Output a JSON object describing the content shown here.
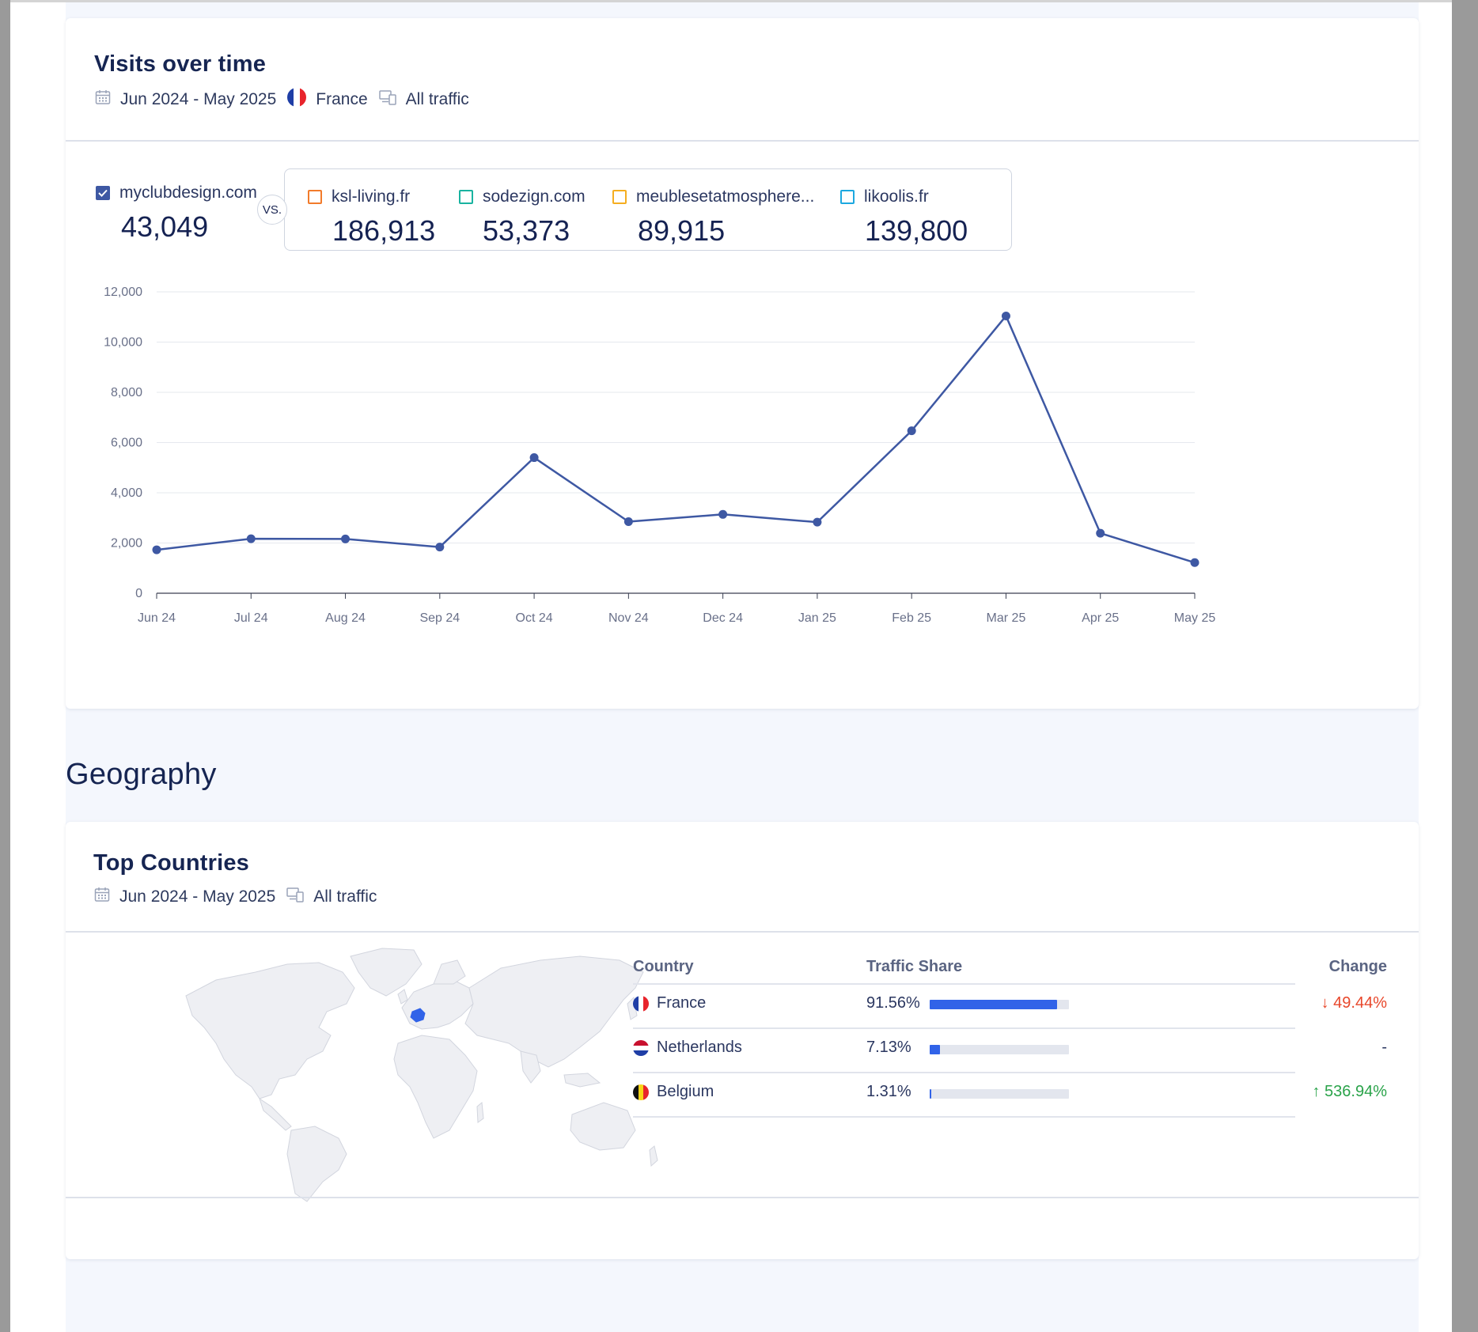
{
  "visits_card": {
    "title": "Visits over time",
    "date_range": "Jun 2024 - May 2025",
    "country": "France",
    "traffic": "All traffic",
    "main_site": {
      "name": "myclubdesign.com",
      "value": "43,049",
      "color": "#3e58a3"
    },
    "vs_label": "VS.",
    "competitors": [
      {
        "name": "ksl-living.fr",
        "value": "186,913",
        "color": "#f27b2b"
      },
      {
        "name": "sodezign.com",
        "value": "53,373",
        "color": "#19b3a0"
      },
      {
        "name": "meublesetatmosphere...",
        "value": "89,915",
        "color": "#f5ae21"
      },
      {
        "name": "likoolis.fr",
        "value": "139,800",
        "color": "#1ca8e0"
      }
    ]
  },
  "chart_data": {
    "type": "line",
    "x": [
      "Jun 24",
      "Jul 24",
      "Aug 24",
      "Sep 24",
      "Oct 24",
      "Nov 24",
      "Dec 24",
      "Jan 25",
      "Feb 25",
      "Mar 25",
      "Apr 25",
      "May 25"
    ],
    "series": [
      {
        "name": "myclubdesign.com",
        "color": "#3e58a3",
        "values": [
          1730,
          2170,
          2160,
          1840,
          5400,
          2850,
          3140,
          2830,
          6470,
          11040,
          2390,
          1220
        ]
      }
    ],
    "ylim": [
      0,
      12000
    ],
    "yticks": [
      "0",
      "2,000",
      "4,000",
      "6,000",
      "8,000",
      "10,000",
      "12,000"
    ],
    "grid": true
  },
  "geography": {
    "heading": "Geography",
    "card_title": "Top Countries",
    "date_range": "Jun 2024 - May 2025",
    "traffic": "All traffic",
    "map_highlight_color": "#3163e8",
    "table": {
      "headers": {
        "country": "Country",
        "share": "Traffic Share",
        "change": "Change"
      },
      "rows": [
        {
          "country": "France",
          "share": "91.56%",
          "share_value": 0.9156,
          "change": "49.44%",
          "direction": "down",
          "change_color": "#e8472b"
        },
        {
          "country": "Netherlands",
          "share": "7.13%",
          "share_value": 0.0713,
          "change": "-",
          "direction": "none",
          "change_color": "#2b3760"
        },
        {
          "country": "Belgium",
          "share": "1.31%",
          "share_value": 0.0131,
          "change": "536.94%",
          "direction": "up",
          "change_color": "#2aa34a"
        }
      ]
    }
  }
}
